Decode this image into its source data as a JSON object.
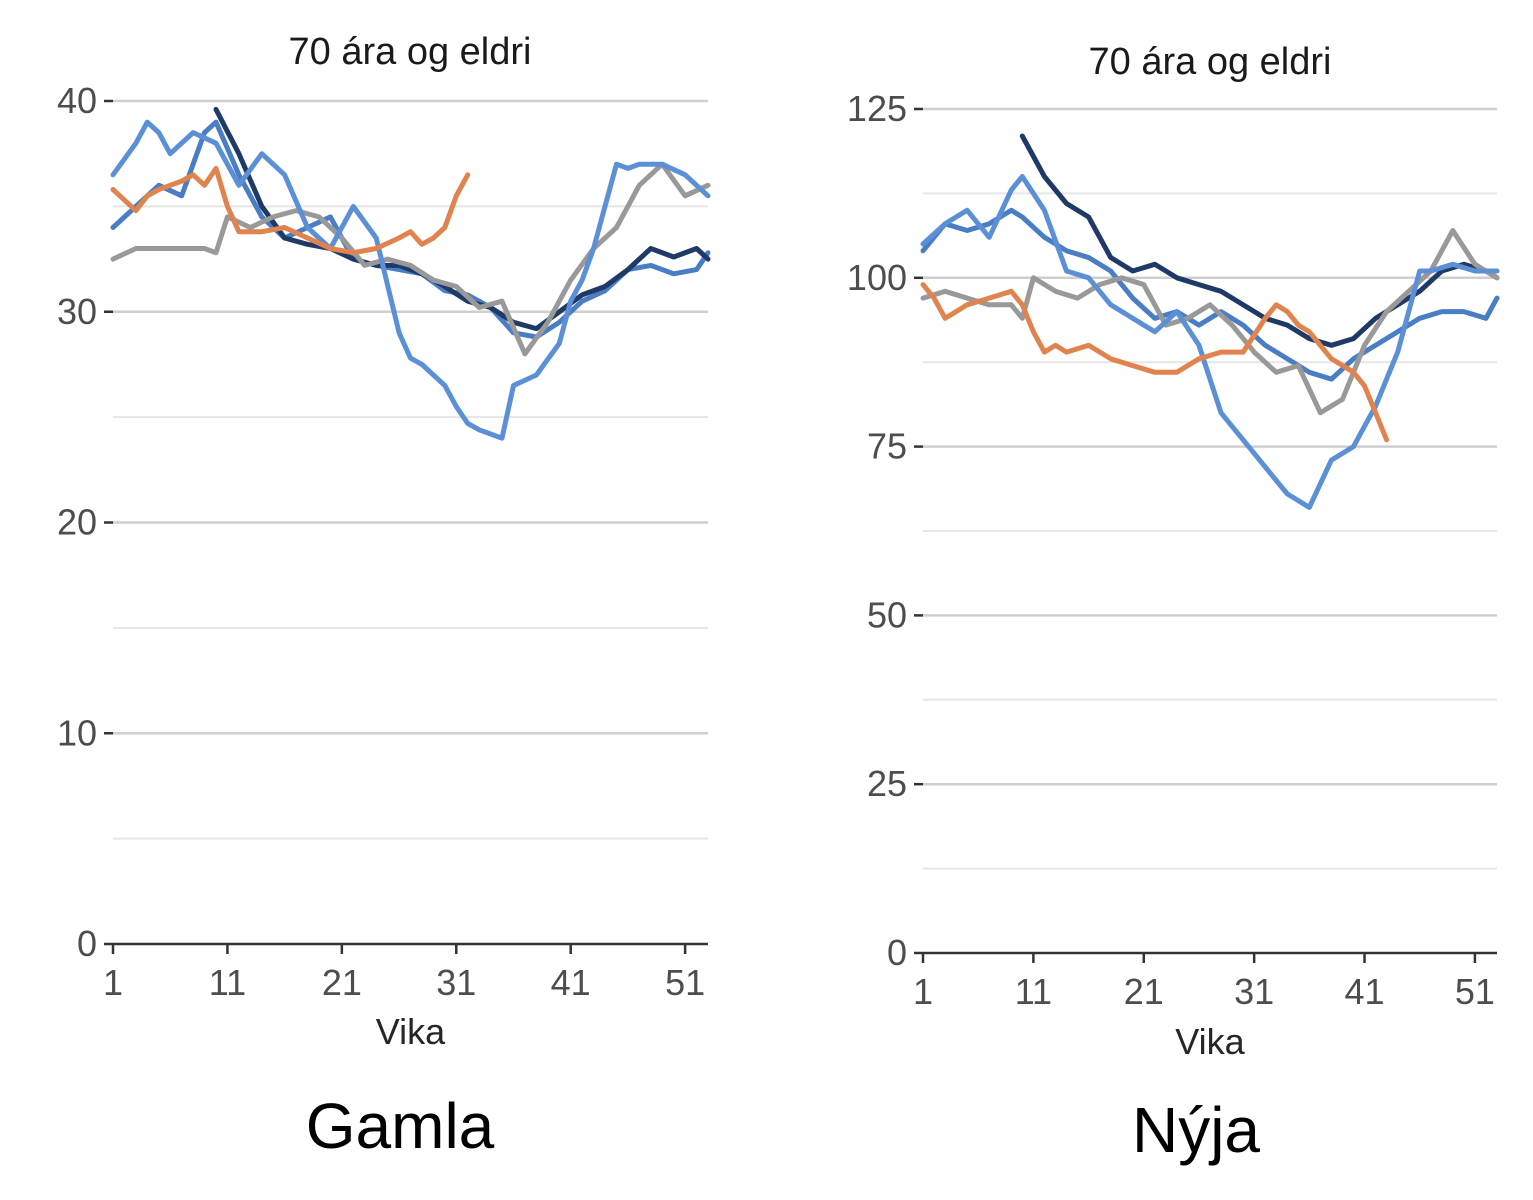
{
  "chart_data": [
    {
      "type": "line",
      "title": "70 ára og eldri",
      "xlabel": "Vika",
      "ylabel": "",
      "caption": "Gamla",
      "xlim": [
        1,
        53
      ],
      "ylim": [
        0,
        40
      ],
      "xticks": [
        1,
        11,
        21,
        31,
        41,
        51
      ],
      "yticks": [
        0,
        10,
        20,
        30,
        40
      ],
      "grid": true,
      "series": [
        {
          "color": "#4a7ec4",
          "x": [
            1,
            3,
            5,
            7,
            9,
            10,
            12,
            14,
            16,
            18,
            20,
            22,
            24,
            26,
            28,
            30,
            32,
            34,
            36,
            38,
            40,
            42,
            44,
            46,
            48,
            50,
            52,
            53
          ],
          "y": [
            34,
            35,
            36,
            35.5,
            38.5,
            39,
            36.5,
            34.5,
            33.5,
            34,
            34.5,
            32.5,
            32.2,
            32,
            31.8,
            31,
            30.8,
            30.2,
            29,
            28.8,
            29.5,
            30.5,
            31,
            32,
            32.2,
            31.8,
            32,
            32.8
          ]
        },
        {
          "color": "#1f3a66",
          "x": [
            10,
            12,
            14,
            16,
            18,
            20,
            22,
            24,
            26,
            28,
            30,
            32,
            34,
            36,
            38,
            40,
            42,
            44,
            46,
            48,
            50,
            52,
            53
          ],
          "y": [
            39.6,
            37.5,
            35,
            33.5,
            33.2,
            33,
            32.5,
            32.2,
            32.2,
            31.8,
            31.2,
            30.5,
            30.2,
            29.5,
            29.2,
            30,
            30.8,
            31.2,
            32,
            33,
            32.6,
            33,
            32.5
          ]
        },
        {
          "color": "#999999",
          "x": [
            1,
            3,
            5,
            7,
            9,
            10,
            11,
            13,
            15,
            17,
            19,
            21,
            23,
            25,
            27,
            29,
            31,
            33,
            35,
            37,
            39,
            41,
            43,
            45,
            47,
            49,
            51,
            53
          ],
          "y": [
            32.5,
            33,
            33,
            33,
            33,
            32.8,
            34.5,
            34,
            34.5,
            34.8,
            34.5,
            33.5,
            32.2,
            32.5,
            32.2,
            31.5,
            31.2,
            30.2,
            30.5,
            28,
            29.5,
            31.5,
            33,
            34,
            36,
            37,
            35.5,
            36
          ]
        },
        {
          "color": "#5b8fd6",
          "x": [
            1,
            3,
            4,
            5,
            6,
            8,
            10,
            12,
            14,
            16,
            18,
            20,
            22,
            24,
            26,
            27,
            28,
            30,
            31,
            32,
            33,
            34,
            35,
            36,
            38,
            40,
            41,
            42,
            43,
            44,
            45,
            46,
            47,
            49,
            51,
            53
          ],
          "y": [
            36.5,
            38,
            39,
            38.5,
            37.5,
            38.5,
            38,
            36,
            37.5,
            36.5,
            34,
            33,
            35,
            33.5,
            29,
            27.8,
            27.5,
            26.5,
            25.5,
            24.7,
            24.4,
            24.2,
            24,
            26.5,
            27,
            28.5,
            30.5,
            31.5,
            33,
            35,
            37,
            36.8,
            37,
            37,
            36.5,
            35.5
          ]
        },
        {
          "color": "#e0834e",
          "x": [
            1,
            2,
            3,
            4,
            5,
            6,
            7,
            8,
            9,
            10,
            11,
            12,
            14,
            16,
            18,
            20,
            22,
            24,
            26,
            27,
            28,
            29,
            30,
            31,
            32
          ],
          "y": [
            35.8,
            35.3,
            34.8,
            35.5,
            35.8,
            36,
            36.2,
            36.5,
            36,
            36.8,
            35,
            33.8,
            33.8,
            34,
            33.5,
            33,
            32.8,
            33,
            33.5,
            33.8,
            33.2,
            33.5,
            34,
            35.5,
            36.5
          ]
        }
      ]
    },
    {
      "type": "line",
      "title": "70 ára og eldri",
      "xlabel": "Vika",
      "ylabel": "",
      "caption": "Nýja",
      "xlim": [
        1,
        53
      ],
      "ylim": [
        0,
        125
      ],
      "xticks": [
        1,
        11,
        21,
        31,
        41,
        51
      ],
      "yticks": [
        0,
        25,
        50,
        75,
        100,
        125
      ],
      "grid": true,
      "series": [
        {
          "color": "#4a7ec4",
          "x": [
            1,
            3,
            5,
            7,
            9,
            10,
            12,
            14,
            16,
            18,
            20,
            22,
            24,
            26,
            28,
            30,
            32,
            34,
            36,
            38,
            40,
            42,
            44,
            46,
            48,
            50,
            52,
            53
          ],
          "y": [
            104,
            108,
            107,
            108,
            110,
            109,
            106,
            104,
            103,
            101,
            97,
            94,
            95,
            93,
            95,
            93,
            90,
            88,
            86,
            85,
            88,
            90,
            92,
            94,
            95,
            95,
            94,
            97
          ]
        },
        {
          "color": "#1f3a66",
          "x": [
            10,
            12,
            14,
            16,
            18,
            20,
            22,
            24,
            26,
            28,
            30,
            32,
            34,
            36,
            38,
            40,
            42,
            44,
            46,
            48,
            50,
            52,
            53
          ],
          "y": [
            121,
            115,
            111,
            109,
            103,
            101,
            102,
            100,
            99,
            98,
            96,
            94,
            93,
            91,
            90,
            91,
            94,
            96,
            98,
            101,
            102,
            101,
            100
          ]
        },
        {
          "color": "#999999",
          "x": [
            1,
            3,
            5,
            7,
            9,
            10,
            11,
            13,
            15,
            17,
            19,
            21,
            23,
            25,
            27,
            29,
            31,
            33,
            35,
            37,
            39,
            41,
            43,
            45,
            47,
            49,
            51,
            53
          ],
          "y": [
            97,
            98,
            97,
            96,
            96,
            94,
            100,
            98,
            97,
            99,
            100,
            99,
            93,
            94,
            96,
            93,
            89,
            86,
            87,
            80,
            82,
            90,
            95,
            98,
            101,
            107,
            102,
            100
          ]
        },
        {
          "color": "#5b8fd6",
          "x": [
            1,
            3,
            5,
            7,
            9,
            10,
            12,
            14,
            16,
            18,
            20,
            22,
            24,
            26,
            27,
            28,
            30,
            31,
            32,
            33,
            34,
            35,
            36,
            38,
            40,
            41,
            42,
            43,
            44,
            45,
            46,
            47,
            49,
            51,
            53
          ],
          "y": [
            105,
            108,
            110,
            106,
            113,
            115,
            110,
            101,
            100,
            96,
            94,
            92,
            95,
            90,
            85,
            80,
            76,
            74,
            72,
            70,
            68,
            67,
            66,
            73,
            75,
            78,
            81,
            85,
            89,
            95,
            101,
            101,
            102,
            101,
            101
          ]
        },
        {
          "color": "#e0834e",
          "x": [
            1,
            2,
            3,
            4,
            5,
            7,
            9,
            10,
            11,
            12,
            13,
            14,
            16,
            18,
            20,
            22,
            24,
            26,
            28,
            30,
            32,
            33,
            34,
            35,
            36,
            38,
            40,
            41,
            42,
            43
          ],
          "y": [
            99,
            97,
            94,
            95,
            96,
            97,
            98,
            96,
            92,
            89,
            90,
            89,
            90,
            88,
            87,
            86,
            86,
            88,
            89,
            89,
            94,
            96,
            95,
            93,
            92,
            88,
            86,
            84,
            80,
            76
          ]
        }
      ]
    }
  ]
}
